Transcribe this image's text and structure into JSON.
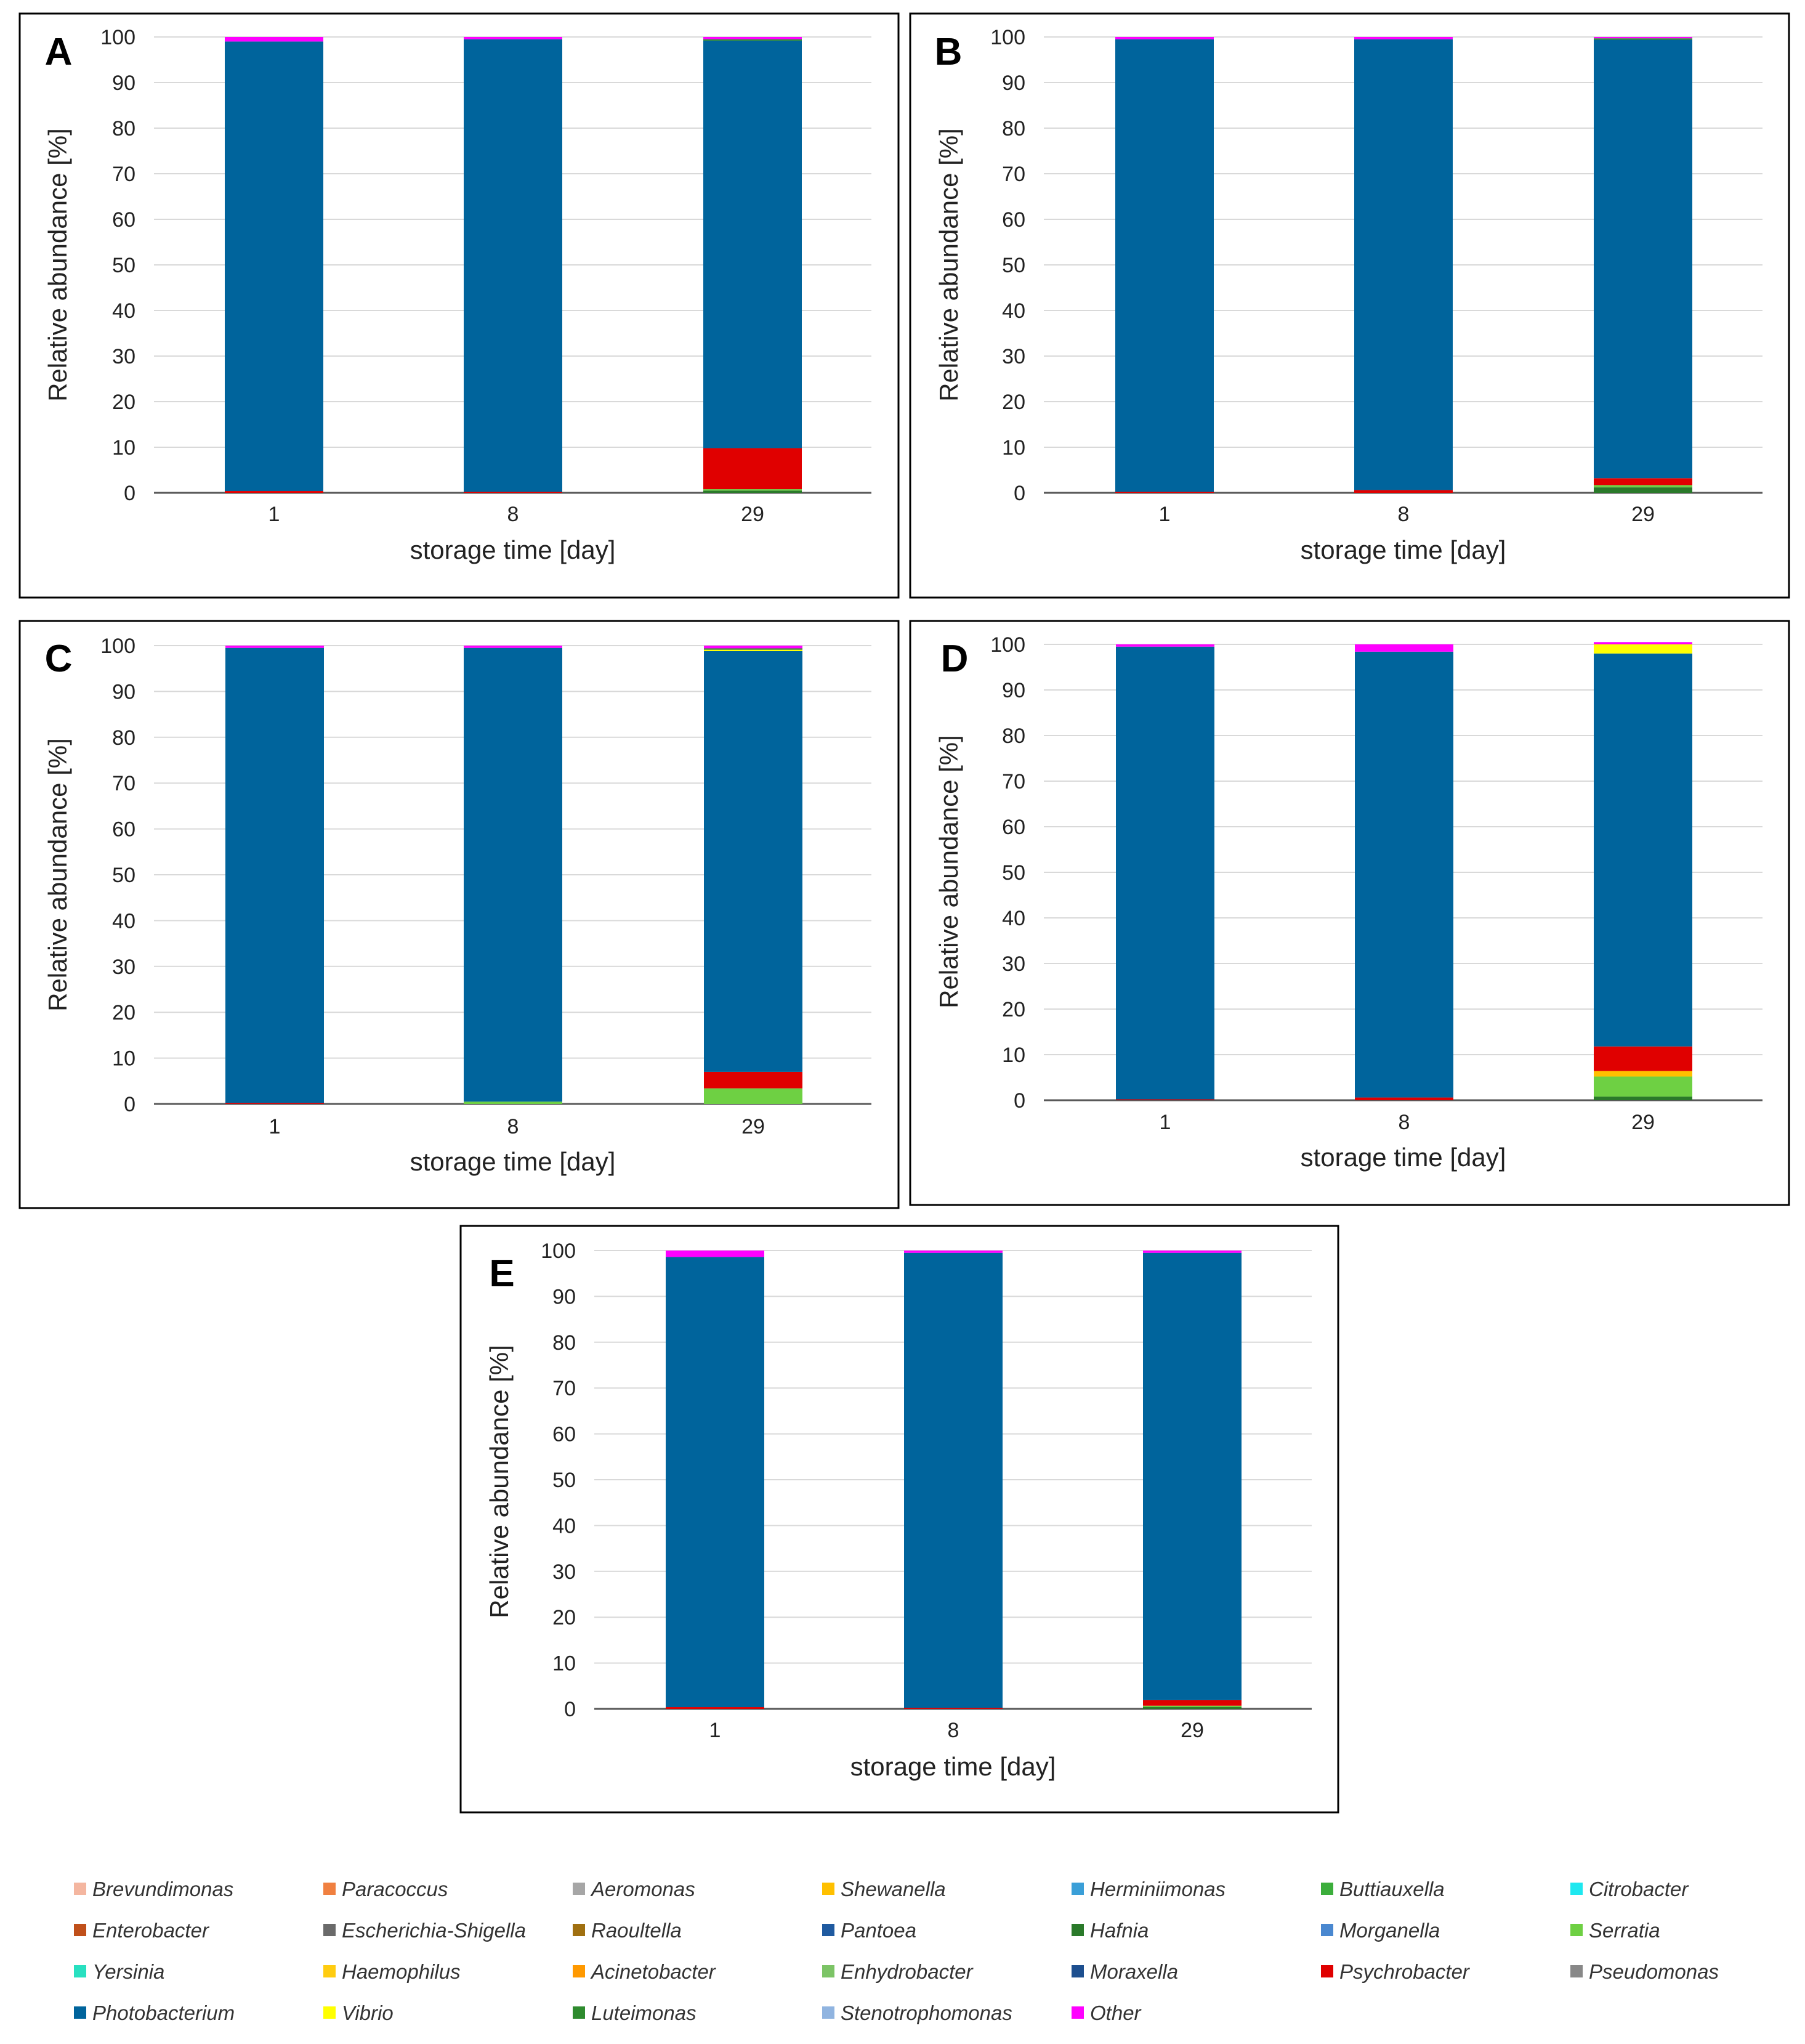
{
  "figure": {
    "x_label": "storage time [day]",
    "y_label": "Relative abundance [%]",
    "y_ticks": [
      "0",
      "10",
      "20",
      "30",
      "40",
      "50",
      "60",
      "70",
      "80",
      "90",
      "100"
    ],
    "x_tick_labels": [
      "1",
      "8",
      "29"
    ]
  },
  "legend": {
    "items": [
      {
        "label": "Brevundimonas",
        "color": "#f4b6a0"
      },
      {
        "label": "Paracoccus",
        "color": "#f08040"
      },
      {
        "label": "Aeromonas",
        "color": "#a6a6a6"
      },
      {
        "label": "Shewanella",
        "color": "#ffc000"
      },
      {
        "label": "Herminiimonas",
        "color": "#3a9fd8"
      },
      {
        "label": "Buttiauxella",
        "color": "#3cae3c"
      },
      {
        "label": "Citrobacter",
        "color": "#1ee8f0"
      },
      {
        "label": "Enterobacter",
        "color": "#c0501a"
      },
      {
        "label": "Escherichia-Shigella",
        "color": "#6a6a6a"
      },
      {
        "label": "Raoultella",
        "color": "#a07010"
      },
      {
        "label": "Pantoea",
        "color": "#1f5aa0"
      },
      {
        "label": "Hafnia",
        "color": "#2a7a2a"
      },
      {
        "label": "Morganella",
        "color": "#4a88d0"
      },
      {
        "label": "Serratia",
        "color": "#6ed043"
      },
      {
        "label": "Yersinia",
        "color": "#28e0c0"
      },
      {
        "label": "Haemophilus",
        "color": "#ffcc10"
      },
      {
        "label": "Acinetobacter",
        "color": "#ff9900"
      },
      {
        "label": "Enhydrobacter",
        "color": "#7cc466"
      },
      {
        "label": "Moraxella",
        "color": "#1d4f8f"
      },
      {
        "label": "Psychrobacter",
        "color": "#e00000"
      },
      {
        "label": "Pseudomonas",
        "color": "#888888"
      },
      {
        "label": "Photobacterium",
        "color": "#00649c"
      },
      {
        "label": "Vibrio",
        "color": "#ffff00"
      },
      {
        "label": "Luteimonas",
        "color": "#2e8b2e"
      },
      {
        "label": "Stenotrophomonas",
        "color": "#90b4e0"
      },
      {
        "label": "Other",
        "color": "#ff00ff"
      }
    ]
  },
  "chart_data": [
    {
      "type": "bar",
      "stacked": true,
      "title": "A",
      "xlabel": "storage time [day]",
      "ylabel": "Relative abundance [%]",
      "ylim": [
        0,
        100
      ],
      "categories": [
        "1",
        "8",
        "29"
      ],
      "series": [
        {
          "name": "Hafnia",
          "values": [
            0,
            0,
            0.5
          ]
        },
        {
          "name": "Serratia",
          "values": [
            0,
            0,
            0.3
          ]
        },
        {
          "name": "Psychrobacter",
          "values": [
            0.4,
            0.2,
            9.0
          ]
        },
        {
          "name": "Photobacterium",
          "values": [
            98.6,
            99.3,
            89.4
          ]
        },
        {
          "name": "Luteimonas",
          "values": [
            0,
            0,
            0.3
          ]
        },
        {
          "name": "Other",
          "values": [
            1.0,
            0.5,
            0.5
          ]
        }
      ]
    },
    {
      "type": "bar",
      "stacked": true,
      "title": "B",
      "xlabel": "storage time [day]",
      "ylabel": "Relative abundance [%]",
      "ylim": [
        0,
        100
      ],
      "categories": [
        "1",
        "8",
        "29"
      ],
      "series": [
        {
          "name": "Hafnia",
          "values": [
            0,
            0,
            1.2
          ]
        },
        {
          "name": "Serratia",
          "values": [
            0,
            0,
            0.5
          ]
        },
        {
          "name": "Psychrobacter",
          "values": [
            0.2,
            0.6,
            1.5
          ]
        },
        {
          "name": "Photobacterium",
          "values": [
            99.3,
            98.9,
            96.2
          ]
        },
        {
          "name": "Luteimonas",
          "values": [
            0,
            0,
            0.3
          ]
        },
        {
          "name": "Other",
          "values": [
            0.5,
            0.5,
            0.3
          ]
        }
      ]
    },
    {
      "type": "bar",
      "stacked": true,
      "title": "C",
      "xlabel": "storage time [day]",
      "ylabel": "Relative abundance [%]",
      "ylim": [
        0,
        100
      ],
      "categories": [
        "1",
        "8",
        "29"
      ],
      "series": [
        {
          "name": "Serratia",
          "values": [
            0,
            0.5,
            3.4
          ]
        },
        {
          "name": "Psychrobacter",
          "values": [
            0.2,
            0,
            3.6
          ]
        },
        {
          "name": "Photobacterium",
          "values": [
            99.3,
            99.0,
            91.8
          ]
        },
        {
          "name": "Vibrio",
          "values": [
            0,
            0,
            0.3
          ]
        },
        {
          "name": "Luteimonas",
          "values": [
            0,
            0,
            0.3
          ]
        },
        {
          "name": "Other",
          "values": [
            0.5,
            0.5,
            0.6
          ]
        }
      ]
    },
    {
      "type": "bar",
      "stacked": true,
      "title": "D",
      "xlabel": "storage time [day]",
      "ylabel": "Relative abundance [%]",
      "ylim": [
        0,
        100
      ],
      "categories": [
        "1",
        "8",
        "29"
      ],
      "series": [
        {
          "name": "Hafnia",
          "values": [
            0,
            0,
            0.8
          ]
        },
        {
          "name": "Serratia",
          "values": [
            0,
            0,
            4.4
          ]
        },
        {
          "name": "Shewanella",
          "values": [
            0,
            0,
            1.2
          ]
        },
        {
          "name": "Psychrobacter",
          "values": [
            0.2,
            0.6,
            5.4
          ]
        },
        {
          "name": "Photobacterium",
          "values": [
            99.3,
            97.8,
            86.2
          ]
        },
        {
          "name": "Vibrio",
          "values": [
            0,
            0,
            2.0
          ]
        },
        {
          "name": "Other",
          "values": [
            0.5,
            1.6,
            0.5
          ]
        }
      ]
    },
    {
      "type": "bar",
      "stacked": true,
      "title": "E",
      "xlabel": "storage time [day]",
      "ylabel": "Relative abundance [%]",
      "ylim": [
        0,
        100
      ],
      "categories": [
        "1",
        "8",
        "29"
      ],
      "series": [
        {
          "name": "Hafnia",
          "values": [
            0,
            0,
            0.4
          ]
        },
        {
          "name": "Serratia",
          "values": [
            0,
            0,
            0.3
          ]
        },
        {
          "name": "Psychrobacter",
          "values": [
            0.4,
            0.2,
            1.2
          ]
        },
        {
          "name": "Photobacterium",
          "values": [
            98.2,
            99.3,
            97.6
          ]
        },
        {
          "name": "Other",
          "values": [
            1.4,
            0.5,
            0.5
          ]
        }
      ]
    }
  ]
}
